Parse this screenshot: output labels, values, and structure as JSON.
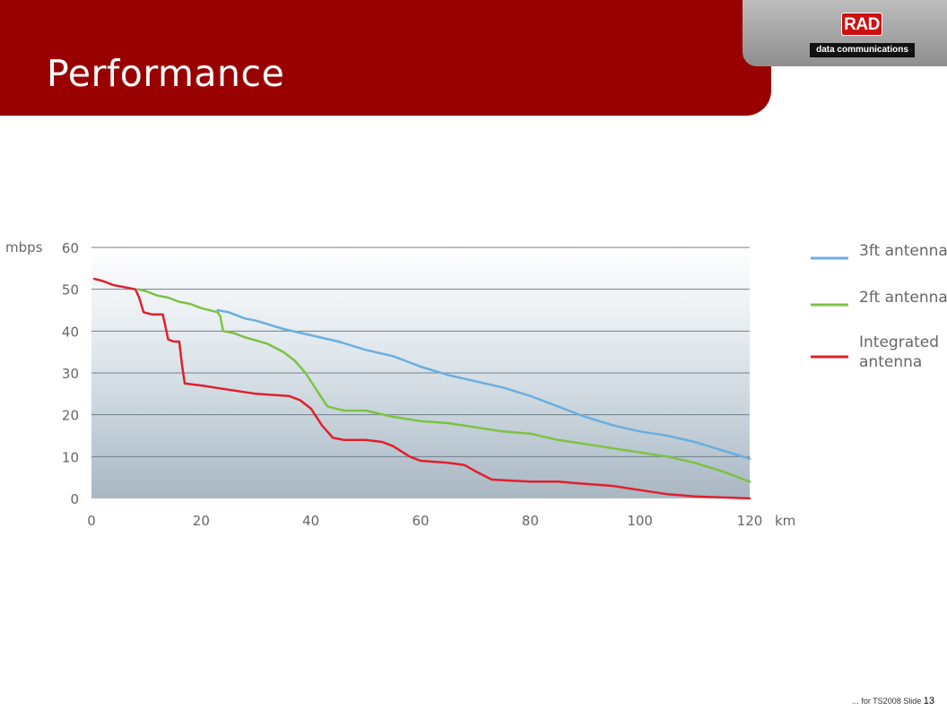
{
  "slide": {
    "title": "Performance",
    "logo_mark": "RAD",
    "logo_subtext": "data communications",
    "footer_text": "... for TS2008 Slide",
    "slide_number": "13"
  },
  "colors": {
    "title_bar": "#990000",
    "series_3ft": "#6aaee0",
    "series_2ft": "#7cc242",
    "series_integrated": "#e0202c",
    "axis_text": "#666666"
  },
  "chart_data": {
    "type": "line",
    "ylabel": "mbps",
    "xlabel": "km",
    "xlim": [
      0,
      120
    ],
    "ylim": [
      0,
      60
    ],
    "x_ticks": [
      0,
      20,
      40,
      60,
      80,
      100,
      120
    ],
    "y_ticks": [
      0,
      10,
      20,
      30,
      40,
      50,
      60
    ],
    "grid": true,
    "legend_position": "right",
    "series": [
      {
        "name": "3ft antenna",
        "color": "#6aaee0",
        "points": [
          [
            23,
            45
          ],
          [
            25,
            44.5
          ],
          [
            28,
            43
          ],
          [
            30,
            42.5
          ],
          [
            35,
            40.5
          ],
          [
            40,
            39
          ],
          [
            45,
            37.5
          ],
          [
            50,
            35.5
          ],
          [
            55,
            34
          ],
          [
            60,
            31.5
          ],
          [
            65,
            29.5
          ],
          [
            70,
            28
          ],
          [
            75,
            26.5
          ],
          [
            80,
            24.5
          ],
          [
            85,
            22
          ],
          [
            90,
            19.5
          ],
          [
            95,
            17.5
          ],
          [
            100,
            16
          ],
          [
            105,
            15
          ],
          [
            110,
            13.5
          ],
          [
            115,
            11.5
          ],
          [
            120,
            9.5
          ]
        ]
      },
      {
        "name": "2ft antenna",
        "color": "#7cc242",
        "points": [
          [
            8.5,
            50
          ],
          [
            10,
            49.5
          ],
          [
            12,
            48.5
          ],
          [
            14,
            48
          ],
          [
            16,
            47
          ],
          [
            18,
            46.5
          ],
          [
            20,
            45.5
          ],
          [
            23,
            44.5
          ],
          [
            23.5,
            43.5
          ],
          [
            24,
            40
          ],
          [
            26,
            39.5
          ],
          [
            28,
            38.5
          ],
          [
            32,
            37
          ],
          [
            35,
            35
          ],
          [
            37,
            33
          ],
          [
            39,
            30
          ],
          [
            41,
            26
          ],
          [
            43,
            22
          ],
          [
            46,
            21
          ],
          [
            50,
            21
          ],
          [
            55,
            19.5
          ],
          [
            60,
            18.5
          ],
          [
            65,
            18
          ],
          [
            70,
            17
          ],
          [
            75,
            16
          ],
          [
            80,
            15.5
          ],
          [
            85,
            14
          ],
          [
            90,
            13
          ],
          [
            95,
            12
          ],
          [
            100,
            11
          ],
          [
            105,
            10
          ],
          [
            110,
            8.5
          ],
          [
            115,
            6.5
          ],
          [
            120,
            4
          ]
        ]
      },
      {
        "name": "Integrated antenna",
        "color": "#e0202c",
        "points": [
          [
            0.5,
            52.5
          ],
          [
            2,
            52
          ],
          [
            4,
            51
          ],
          [
            6,
            50.5
          ],
          [
            8,
            50
          ],
          [
            8.7,
            48
          ],
          [
            9.5,
            44.5
          ],
          [
            11,
            44
          ],
          [
            13,
            44
          ],
          [
            13.5,
            41
          ],
          [
            14,
            38
          ],
          [
            15,
            37.5
          ],
          [
            16,
            37.5
          ],
          [
            16.5,
            32
          ],
          [
            17,
            27.5
          ],
          [
            20,
            27
          ],
          [
            25,
            26
          ],
          [
            30,
            25
          ],
          [
            36,
            24.5
          ],
          [
            38,
            23.5
          ],
          [
            40,
            21.5
          ],
          [
            42,
            17.5
          ],
          [
            44,
            14.5
          ],
          [
            46,
            14
          ],
          [
            50,
            14
          ],
          [
            53,
            13.5
          ],
          [
            55,
            12.5
          ],
          [
            58,
            10
          ],
          [
            60,
            9
          ],
          [
            65,
            8.5
          ],
          [
            68,
            8
          ],
          [
            70,
            6.5
          ],
          [
            73,
            4.5
          ],
          [
            80,
            4
          ],
          [
            85,
            4
          ],
          [
            90,
            3.5
          ],
          [
            95,
            3
          ],
          [
            100,
            2
          ],
          [
            105,
            1
          ],
          [
            110,
            0.5
          ],
          [
            120,
            0
          ]
        ]
      }
    ]
  }
}
